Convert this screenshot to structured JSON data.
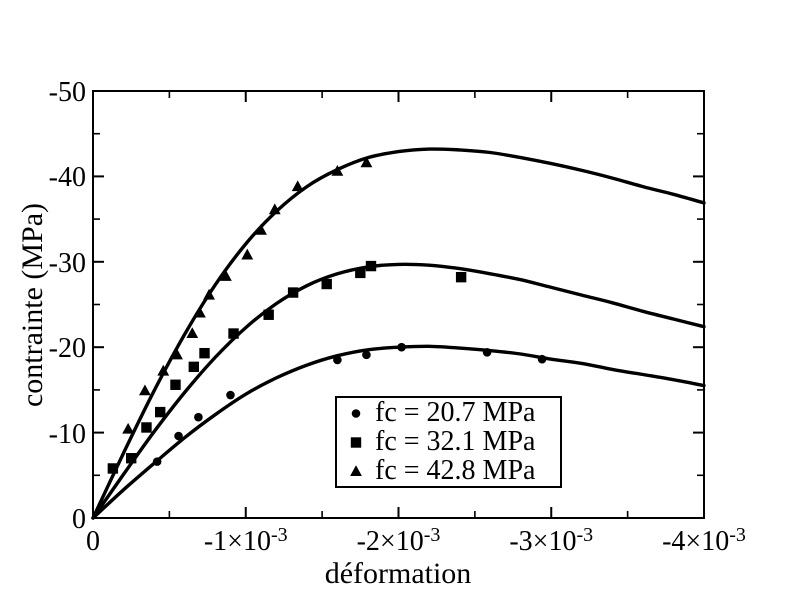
{
  "figure": {
    "background": "#ffffff",
    "ink": "#000000"
  },
  "chart_data": {
    "type": "line+scatter",
    "title": "",
    "xlabel": "déformation",
    "ylabel": "contrainte (MPa)",
    "x_scale_note": "x values in units of 1e-3 strain",
    "xlim": [
      0,
      -4
    ],
    "ylim": [
      0,
      -50
    ],
    "grid": false,
    "frame": "box with inward ticks on all four sides",
    "x_ticks": {
      "major": [
        0,
        -1,
        -2,
        -3,
        -4
      ],
      "minor": [
        -0.5,
        -1.5,
        -2.5,
        -3.5
      ],
      "labels": [
        {
          "base": "0",
          "exp": ""
        },
        {
          "base": "-1×10",
          "exp": "-3"
        },
        {
          "base": "-2×10",
          "exp": "-3"
        },
        {
          "base": "-3×10",
          "exp": "-3"
        },
        {
          "base": "-4×10",
          "exp": "-3"
        }
      ]
    },
    "y_ticks": {
      "major": [
        0,
        -10,
        -20,
        -30,
        -40,
        -50
      ],
      "minor": [
        -5,
        -15,
        -25,
        -35,
        -45
      ],
      "labels": [
        "0",
        "-10",
        "-20",
        "-30",
        "-40",
        "-50"
      ]
    },
    "legend": {
      "position": "inside, lower center-right",
      "border": true
    },
    "series": [
      {
        "label": "fc = 20.7 MPa",
        "marker": "circle",
        "color": "#000000",
        "points": [
          [
            -0.42,
            -6.6
          ],
          [
            -0.56,
            -9.6
          ],
          [
            -0.69,
            -11.8
          ],
          [
            -0.9,
            -14.4
          ],
          [
            -1.6,
            -18.5
          ],
          [
            -1.79,
            -19.1
          ],
          [
            -2.02,
            -20.0
          ],
          [
            -2.58,
            -19.4
          ],
          [
            -2.94,
            -18.6
          ]
        ],
        "fit_curve": [
          [
            0,
            0
          ],
          [
            -0.2,
            -3.3
          ],
          [
            -0.4,
            -6.4
          ],
          [
            -0.6,
            -9.4
          ],
          [
            -0.8,
            -12.1
          ],
          [
            -1.0,
            -14.5
          ],
          [
            -1.2,
            -16.4
          ],
          [
            -1.4,
            -17.9
          ],
          [
            -1.6,
            -19.0
          ],
          [
            -1.8,
            -19.7
          ],
          [
            -2.0,
            -20.0
          ],
          [
            -2.2,
            -20.1
          ],
          [
            -2.4,
            -19.9
          ],
          [
            -2.6,
            -19.6
          ],
          [
            -2.8,
            -19.2
          ],
          [
            -3.0,
            -18.6
          ],
          [
            -3.2,
            -18.1
          ],
          [
            -3.4,
            -17.4
          ],
          [
            -3.6,
            -16.8
          ],
          [
            -3.8,
            -16.2
          ],
          [
            -4.0,
            -15.5
          ]
        ]
      },
      {
        "label": "fc = 32.1 MPa",
        "marker": "square",
        "color": "#000000",
        "points": [
          [
            -0.13,
            -5.8
          ],
          [
            -0.25,
            -7.0
          ],
          [
            -0.35,
            -10.6
          ],
          [
            -0.44,
            -12.4
          ],
          [
            -0.54,
            -15.6
          ],
          [
            -0.66,
            -17.7
          ],
          [
            -0.73,
            -19.3
          ],
          [
            -0.92,
            -21.6
          ],
          [
            -1.15,
            -23.8
          ],
          [
            -1.31,
            -26.4
          ],
          [
            -1.53,
            -27.4
          ],
          [
            -1.75,
            -28.7
          ],
          [
            -1.82,
            -29.5
          ],
          [
            -2.41,
            -28.2
          ]
        ],
        "fit_curve": [
          [
            0,
            0
          ],
          [
            -0.2,
            -5.1
          ],
          [
            -0.4,
            -10.1
          ],
          [
            -0.6,
            -14.7
          ],
          [
            -0.8,
            -18.8
          ],
          [
            -1.0,
            -22.3
          ],
          [
            -1.2,
            -25.1
          ],
          [
            -1.4,
            -27.2
          ],
          [
            -1.6,
            -28.6
          ],
          [
            -1.8,
            -29.4
          ],
          [
            -2.0,
            -29.7
          ],
          [
            -2.2,
            -29.6
          ],
          [
            -2.4,
            -29.2
          ],
          [
            -2.6,
            -28.6
          ],
          [
            -2.8,
            -27.9
          ],
          [
            -3.0,
            -27.0
          ],
          [
            -3.2,
            -26.1
          ],
          [
            -3.4,
            -25.2
          ],
          [
            -3.6,
            -24.2
          ],
          [
            -3.8,
            -23.3
          ],
          [
            -4.0,
            -22.4
          ]
        ]
      },
      {
        "label": "fc = 42.8 MPa",
        "marker": "triangle",
        "color": "#000000",
        "points": [
          [
            -0.23,
            -10.4
          ],
          [
            -0.34,
            -14.9
          ],
          [
            -0.46,
            -17.2
          ],
          [
            -0.55,
            -19.1
          ],
          [
            -0.65,
            -21.6
          ],
          [
            -0.7,
            -24.0
          ],
          [
            -0.76,
            -26.1
          ],
          [
            -0.87,
            -28.3
          ],
          [
            -1.01,
            -30.8
          ],
          [
            -1.1,
            -33.7
          ],
          [
            -1.19,
            -36.1
          ],
          [
            -1.34,
            -38.8
          ],
          [
            -1.6,
            -40.6
          ],
          [
            -1.79,
            -41.6
          ]
        ],
        "fit_curve": [
          [
            0,
            0
          ],
          [
            -0.2,
            -7.6
          ],
          [
            -0.4,
            -14.9
          ],
          [
            -0.6,
            -21.5
          ],
          [
            -0.8,
            -27.3
          ],
          [
            -1.0,
            -32.1
          ],
          [
            -1.2,
            -35.9
          ],
          [
            -1.4,
            -38.8
          ],
          [
            -1.6,
            -40.8
          ],
          [
            -1.8,
            -42.2
          ],
          [
            -2.0,
            -42.9
          ],
          [
            -2.2,
            -43.2
          ],
          [
            -2.4,
            -43.1
          ],
          [
            -2.6,
            -42.8
          ],
          [
            -2.8,
            -42.2
          ],
          [
            -3.0,
            -41.5
          ],
          [
            -3.2,
            -40.7
          ],
          [
            -3.4,
            -39.8
          ],
          [
            -3.6,
            -38.8
          ],
          [
            -3.8,
            -37.9
          ],
          [
            -4.0,
            -36.9
          ]
        ]
      }
    ]
  }
}
